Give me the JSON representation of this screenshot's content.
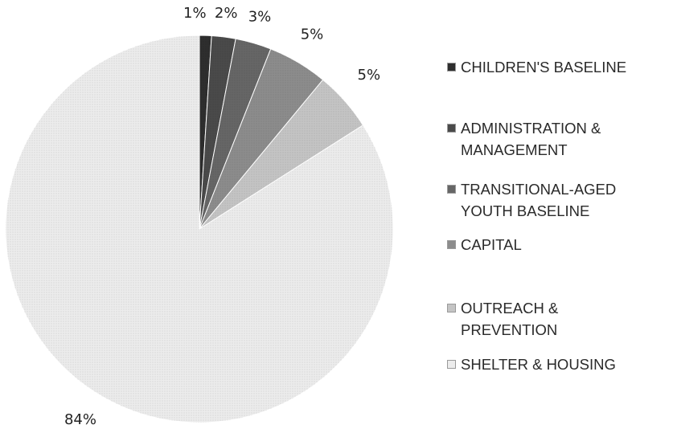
{
  "chart_data": {
    "type": "pie",
    "title": "",
    "slices": [
      {
        "label": "CHILDREN'S BASELINE",
        "value": 1,
        "display": "1%",
        "color": "#2e2e2e"
      },
      {
        "label": "ADMINISTRATION & MANAGEMENT",
        "value": 2,
        "display": "2%",
        "color": "#4a4a4a"
      },
      {
        "label": "TRANSITIONAL-AGED YOUTH BASELINE",
        "value": 3,
        "display": "3%",
        "color": "#666666"
      },
      {
        "label": "CAPITAL",
        "value": 5,
        "display": "5%",
        "color": "#8c8c8c"
      },
      {
        "label": "OUTREACH & PREVENTION",
        "value": 5,
        "display": "5%",
        "color": "#c4c4c4"
      },
      {
        "label": "SHELTER & HOUSING",
        "value": 84,
        "display": "84%",
        "color": "#ececec"
      }
    ],
    "legend_position": "right",
    "start_angle": "top",
    "direction": "clockwise"
  },
  "legend": {
    "items": [
      {
        "label": "CHILDREN'S BASELINE",
        "color": "#2e2e2e"
      },
      {
        "label": "ADMINISTRATION &\nMANAGEMENT",
        "color": "#4a4a4a"
      },
      {
        "label": "TRANSITIONAL-AGED\nYOUTH BASELINE",
        "color": "#666666"
      },
      {
        "label": "CAPITAL",
        "color": "#8c8c8c"
      },
      {
        "label": "OUTREACH &\nPREVENTION",
        "color": "#c4c4c4"
      },
      {
        "label": "SHELTER & HOUSING",
        "color": "#ececec"
      }
    ]
  }
}
